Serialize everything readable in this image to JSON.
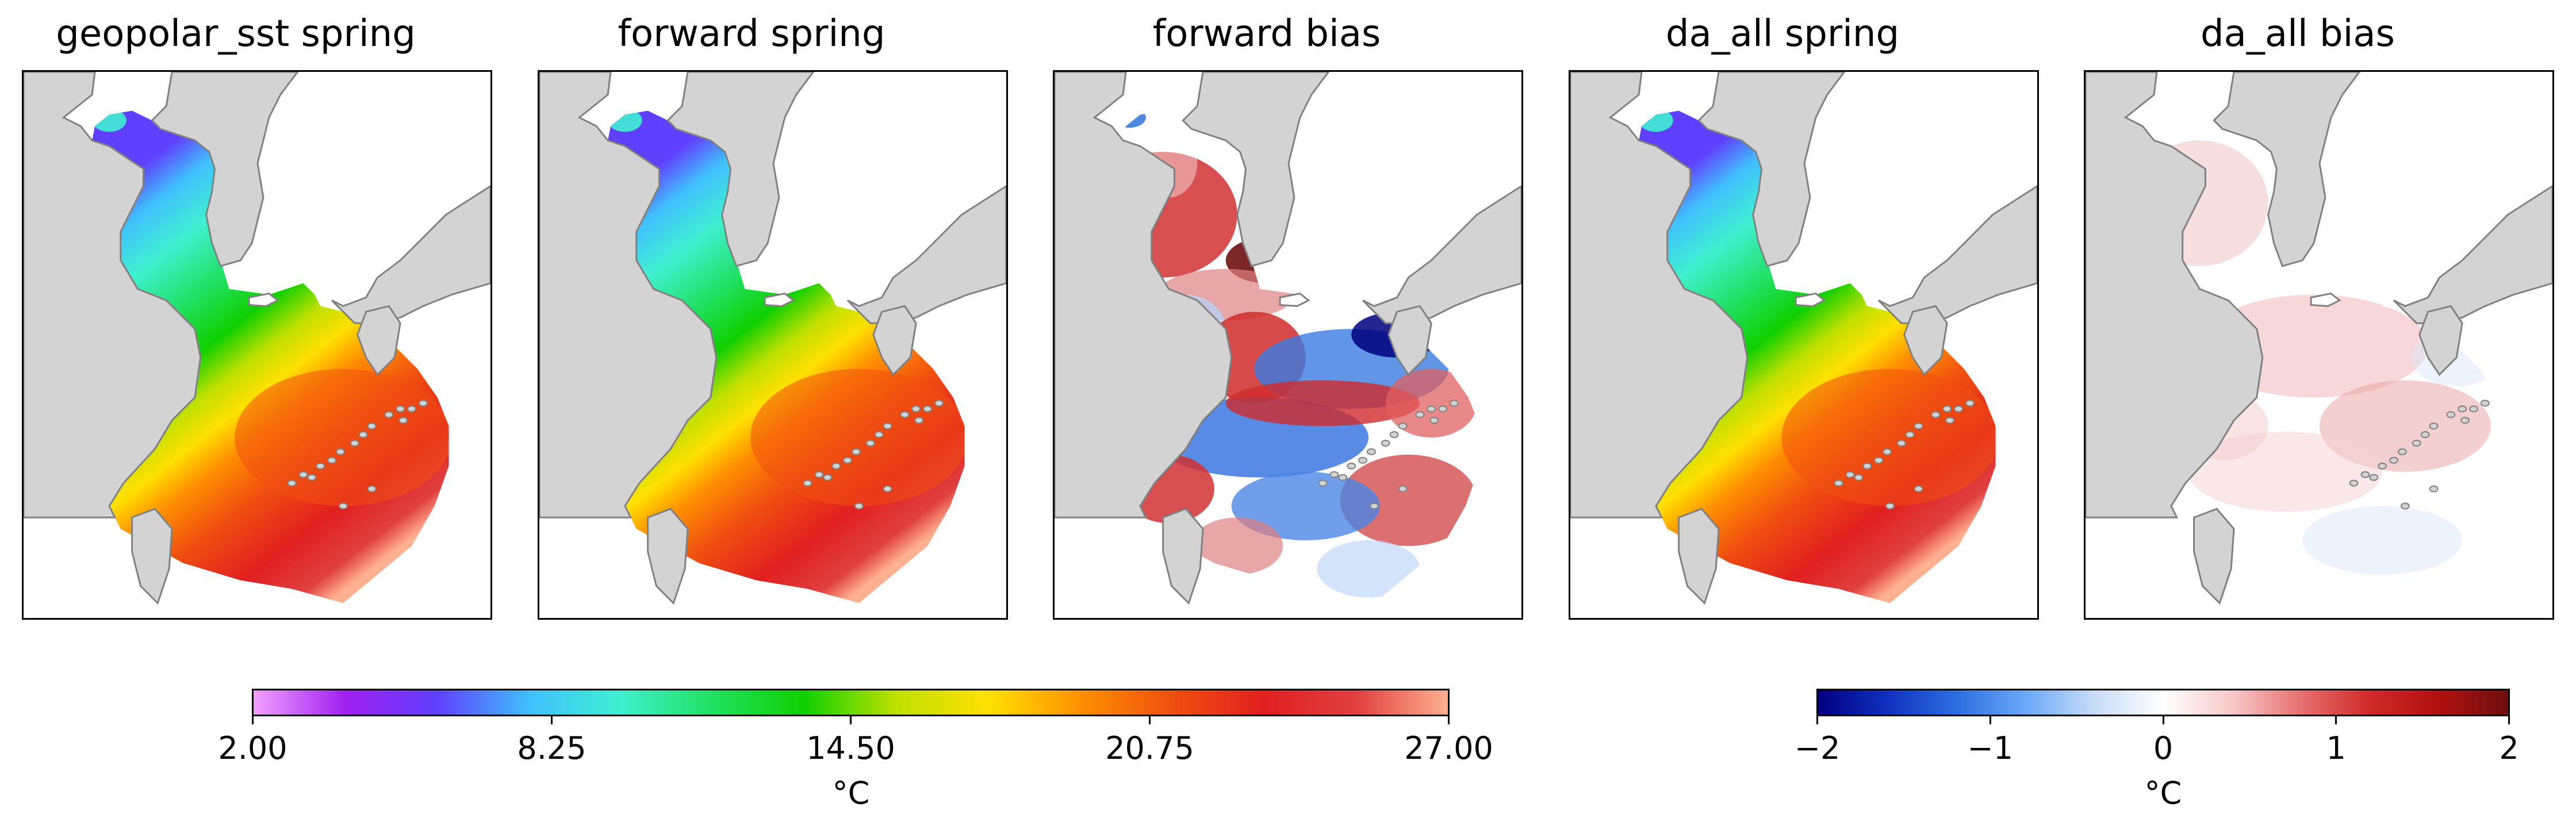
{
  "panels": [
    {
      "title": "geopolar_sst spring",
      "kind": "sst"
    },
    {
      "title": "forward spring",
      "kind": "sst"
    },
    {
      "title": "forward bias",
      "kind": "bias_strong"
    },
    {
      "title": "da_all spring",
      "kind": "sst"
    },
    {
      "title": "da_all bias",
      "kind": "bias_weak"
    }
  ],
  "colorbars": {
    "sst": {
      "ticks": [
        "2.00",
        "8.25",
        "14.50",
        "20.75",
        "27.00"
      ],
      "label": "°C",
      "range": [
        2,
        27
      ],
      "colors": [
        "#f0a0ff",
        "#a020f0",
        "#6040ff",
        "#40c0ff",
        "#40f0d0",
        "#20e060",
        "#10d000",
        "#c0e000",
        "#ffe000",
        "#ff9000",
        "#f05010",
        "#e02020",
        "#e04040",
        "#ffb090"
      ]
    },
    "bias": {
      "ticks": [
        "−2",
        "−1",
        "0",
        "1",
        "2"
      ],
      "label": "°C",
      "range": [
        -2,
        2
      ],
      "colors": [
        "#00007f",
        "#1030c0",
        "#2d6ee0",
        "#6aa8f8",
        "#c8dcf8",
        "#ffffff",
        "#f8c8c8",
        "#e87070",
        "#d02a2a",
        "#b01010",
        "#6e0f0f"
      ]
    }
  },
  "map_colors": {
    "land": "#d3d3d3",
    "coast": "#808080"
  }
}
